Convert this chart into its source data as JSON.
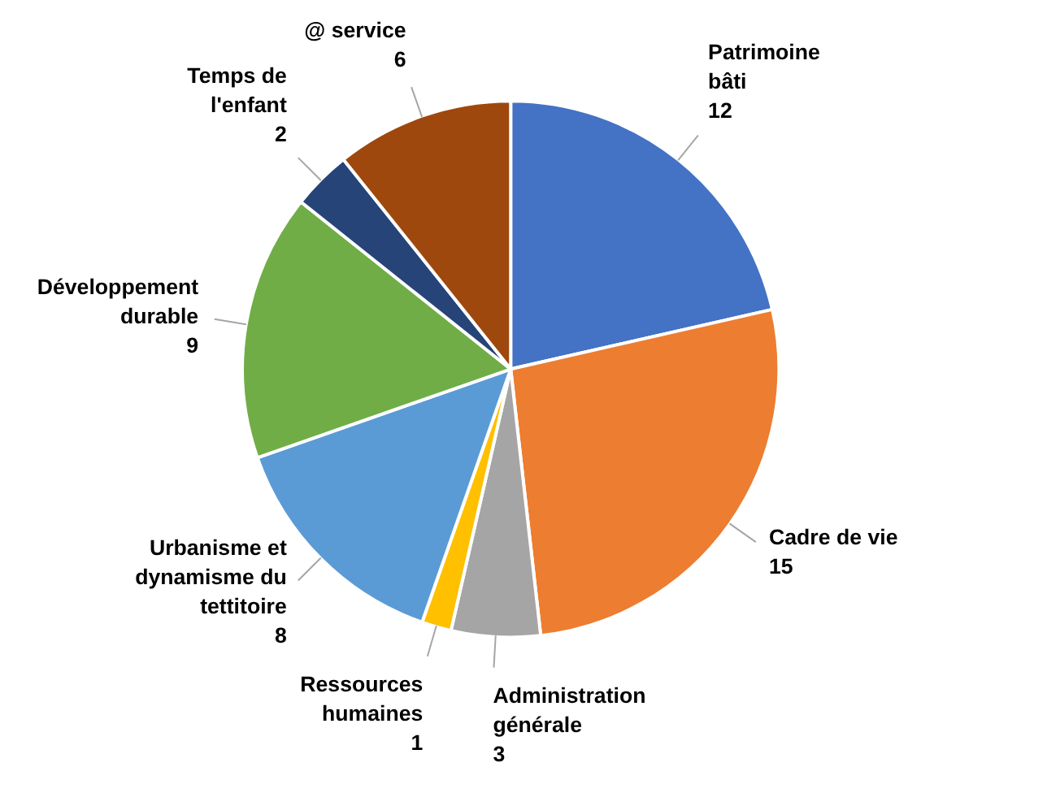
{
  "chart_data": {
    "type": "pie",
    "categories": [
      "Patrimoine bâti",
      "Cadre de vie",
      "Administration générale",
      "Ressources humaines",
      "Urbanisme et dynamisme du tettitoire",
      "Développement durable",
      "Temps de l'enfant",
      "@ service"
    ],
    "values": [
      12,
      15,
      3,
      1,
      8,
      9,
      2,
      6
    ],
    "colors": [
      "#4472c4",
      "#ed7d31",
      "#a5a5a5",
      "#ffc000",
      "#5b9bd5",
      "#70ad47",
      "#264478",
      "#9e480e"
    ],
    "data_labels": true
  }
}
